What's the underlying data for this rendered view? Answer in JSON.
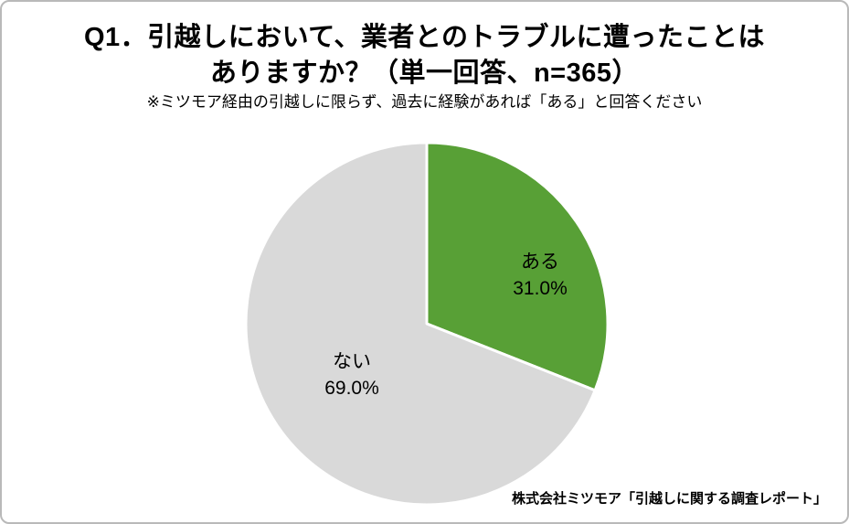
{
  "header": {
    "title_line1": "Q1．引越しにおいて、業者とのトラブルに遭ったことは",
    "title_line2": "ありますか？（単一回答、n=365）",
    "subtitle": "※ミツモア経由の引越しに限らず、過去に経験があれば「ある」と回答ください"
  },
  "chart_data": {
    "type": "pie",
    "title": "Q1．引越しにおいて、業者とのトラブルに遭ったことはありますか？（単一回答、n=365）",
    "sample_size": 365,
    "start_angle_deg": 0,
    "direction": "clockwise",
    "slice_border_color": "#ffffff",
    "slices": [
      {
        "label": "ある",
        "value": 31.0,
        "display": "31.0%",
        "color": "#58A036"
      },
      {
        "label": "ない",
        "value": 69.0,
        "display": "69.0%",
        "color": "#D9D9D9"
      }
    ]
  },
  "footer": {
    "source": "株式会社ミツモア「引越しに関する調査レポート」"
  }
}
